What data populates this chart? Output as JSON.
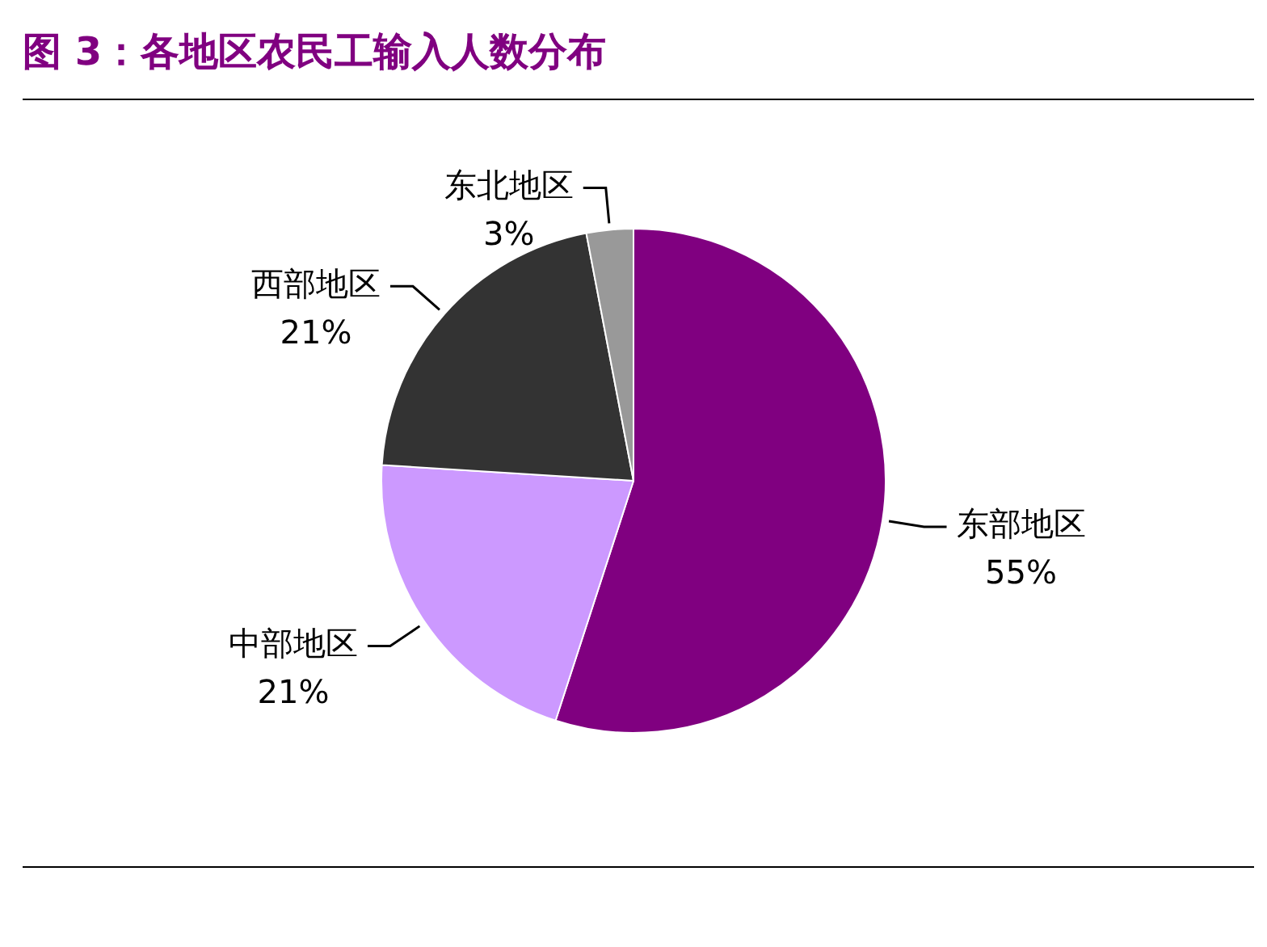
{
  "chart_data": {
    "type": "pie",
    "title": "图 3：各地区农民工输入人数分布",
    "categories": [
      "东部地区",
      "中部地区",
      "西部地区",
      "东北地区"
    ],
    "values": [
      55,
      21,
      21,
      3
    ],
    "colors": [
      "#800080",
      "#cc99ff",
      "#333333",
      "#999999"
    ],
    "value_labels": [
      "55%",
      "21%",
      "21%",
      "3%"
    ],
    "legend": false
  }
}
